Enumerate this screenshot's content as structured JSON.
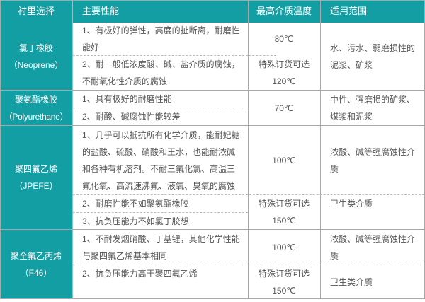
{
  "colors": {
    "header_bg": "#139ea4",
    "text": "#555555"
  },
  "header": [
    "衬里选择",
    "主要性能",
    "最高介质温度",
    "适用范围"
  ],
  "rows": [
    {
      "material": [
        "氯丁橡胶",
        "（Neoprene）"
      ],
      "props": [
        [
          "1、有极好的弹性，高度的扯断离，耐磨性",
          "能好"
        ],
        [
          "2、耐一般低浓度酸、碱、盐介质的腐蚀，",
          "不耐氧化性介质的腐蚀"
        ]
      ],
      "temp": [
        "80℃",
        [
          "特殊订货可选",
          "120℃"
        ]
      ],
      "scope": [
        "水、污水、弱磨损性的",
        "泥浆、矿浆"
      ]
    },
    {
      "material": [
        "聚氨酯橡胶",
        "（Polyurethane）"
      ],
      "props": [
        "1、具有极好的耐磨性能",
        "2、耐酸、碱腐蚀性能较差"
      ],
      "temp": "70℃",
      "scope": [
        "中性、强磨损的矿浆、",
        "煤浆和泥浆"
      ]
    },
    {
      "material": [
        "聚四氟乙烯",
        "（JPEFE）"
      ],
      "props": [
        [
          "1、几乎可以抵抗所有化学介质，能耐妃糖",
          "的盐酸、硫酸、硝酸和王水，也能耐浓碱",
          "和各种有机溶剂。不耐三氟化氯、高温三",
          "氟化氧、高流速沸氟、液氧、臭氧的腐蚀"
        ],
        "2、耐磨性能不如聚氨酯橡胶",
        "3、抗负压能力不如氯丁胶想"
      ],
      "temp": [
        "100℃",
        [
          "特殊订货可选",
          "150℃"
        ]
      ],
      "scope": [
        [
          "浓酸、碱等强腐蚀性介",
          "质"
        ],
        "卫生类介质"
      ]
    },
    {
      "material": [
        "聚全氟乙丙烯",
        "（F46）"
      ],
      "props": [
        [
          "1、不耐发烟硝酸、丁基锂，其他化学性能",
          "与聚四氟乙烯基本相同"
        ],
        "2、抗负压能力高于聚四氟乙烯"
      ],
      "temp": [
        "100℃",
        [
          "特殊订货可选",
          "150℃"
        ]
      ],
      "scope": [
        [
          "浓酸、碱等强腐蚀性介",
          "质"
        ],
        "卫生类介质"
      ]
    }
  ]
}
